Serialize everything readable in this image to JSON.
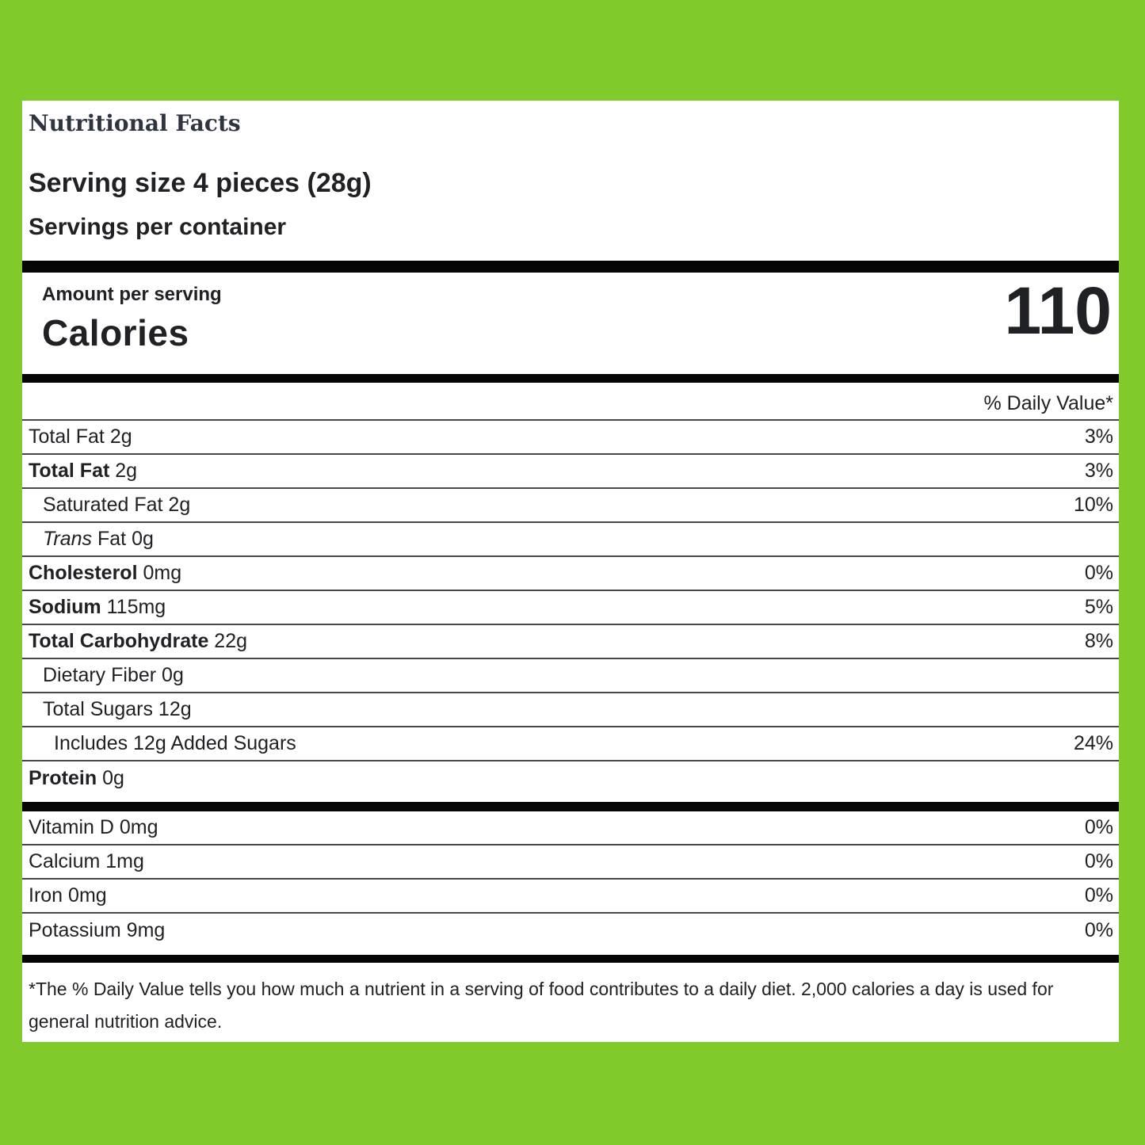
{
  "colors": {
    "background_green": "#80ca2c",
    "panel_white": "#ffffff",
    "bar_black": "#060606",
    "separator_gray": "#474747",
    "text_dark": "#202124",
    "title_dark": "#2f3440"
  },
  "header": {
    "title": "Nutritional Facts",
    "serving_size": "Serving size 4 pieces (28g)",
    "servings_per_container": "Servings per container"
  },
  "calories_section": {
    "amount_label": "Amount per serving",
    "calories_label": "Calories",
    "calories_value": "110"
  },
  "daily_value_header": "% Daily Value*",
  "nutrient_rows": [
    {
      "name": "Total Fat",
      "amount": "2g",
      "bold": false,
      "italic": false,
      "indent": 0,
      "dv": "3%"
    },
    {
      "name": "Total Fat",
      "amount": "2g",
      "bold": true,
      "italic": false,
      "indent": 0,
      "dv": "3%"
    },
    {
      "name": "Saturated Fat",
      "amount": "2g",
      "bold": false,
      "italic": false,
      "indent": 1,
      "dv": "10%"
    },
    {
      "name": "Trans",
      "amount": "Fat 0g",
      "bold": false,
      "italic": true,
      "indent": 1,
      "dv": ""
    },
    {
      "name": "Cholesterol",
      "amount": "0mg",
      "bold": true,
      "italic": false,
      "indent": 0,
      "dv": "0%"
    },
    {
      "name": "Sodium",
      "amount": "115mg",
      "bold": true,
      "italic": false,
      "indent": 0,
      "dv": "5%"
    },
    {
      "name": "Total Carbohydrate",
      "amount": "22g",
      "bold": true,
      "italic": false,
      "indent": 0,
      "dv": "8%"
    },
    {
      "name": "Dietary Fiber",
      "amount": "0g",
      "bold": false,
      "italic": false,
      "indent": 1,
      "dv": ""
    },
    {
      "name": "Total Sugars",
      "amount": "12g",
      "bold": false,
      "italic": false,
      "indent": 1,
      "dv": ""
    },
    {
      "name": "Includes 12g Added Sugars",
      "amount": "",
      "bold": false,
      "italic": false,
      "indent": 2,
      "dv": "24%"
    },
    {
      "name": "Protein",
      "amount": "0g",
      "bold": true,
      "italic": false,
      "indent": 0,
      "dv": ""
    }
  ],
  "vitamin_rows": [
    {
      "name": "Vitamin D",
      "amount": "0mg",
      "bold": false,
      "italic": false,
      "indent": 0,
      "dv": "0%"
    },
    {
      "name": "Calcium",
      "amount": "1mg",
      "bold": false,
      "italic": false,
      "indent": 0,
      "dv": "0%"
    },
    {
      "name": "Iron",
      "amount": "0mg",
      "bold": false,
      "italic": false,
      "indent": 0,
      "dv": "0%"
    },
    {
      "name": "Potassium",
      "amount": "9mg",
      "bold": false,
      "italic": false,
      "indent": 0,
      "dv": "0%"
    }
  ],
  "footnote": "*The % Daily Value tells you how much a nutrient in a serving of food contributes to a daily diet. 2,000 calories a day is used for general nutrition advice."
}
